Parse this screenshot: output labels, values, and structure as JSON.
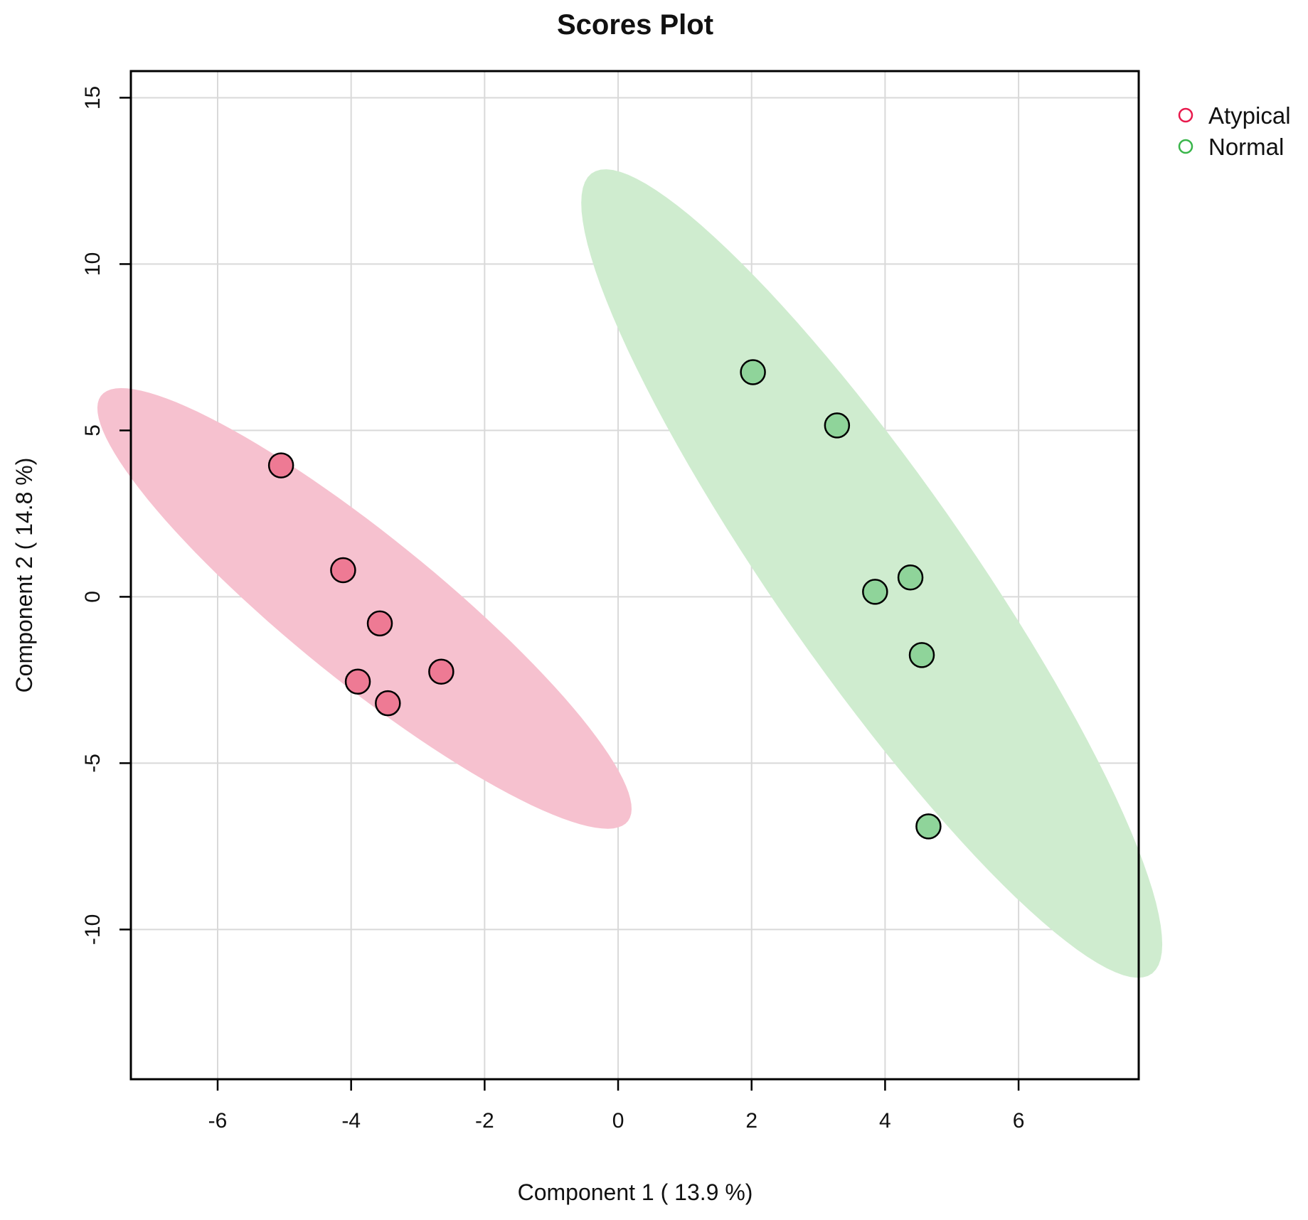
{
  "chart_data": {
    "type": "scatter",
    "title": "Scores Plot",
    "xlabel": "Component 1 ( 13.9 %)",
    "ylabel": "Component 2 ( 14.8 %)",
    "xlim": [
      -7.3,
      7.8
    ],
    "ylim": [
      -14.5,
      15.8
    ],
    "xticks": [
      -6,
      -4,
      -2,
      0,
      2,
      4,
      6
    ],
    "yticks": [
      -10,
      -5,
      0,
      5,
      10,
      15
    ],
    "grid": true,
    "legend_position": "top-right, outside plot",
    "series": [
      {
        "name": "Atypical",
        "color": "#e8194c",
        "point_fill": "#ee7a94",
        "ellipse_fill": "#f6c1cf",
        "points": [
          {
            "x": -5.05,
            "y": 3.95
          },
          {
            "x": -4.12,
            "y": 0.8
          },
          {
            "x": -3.57,
            "y": -0.8
          },
          {
            "x": -3.9,
            "y": -2.55
          },
          {
            "x": -3.45,
            "y": -3.2
          },
          {
            "x": -2.65,
            "y": -2.25
          }
        ],
        "ellipse": {
          "cx": -3.8,
          "cy": -0.35,
          "semi_major": 7.6,
          "semi_minor": 1.45,
          "angle_deg": -60
        }
      },
      {
        "name": "Normal",
        "color": "#39b54a",
        "point_fill": "#8fd49a",
        "ellipse_fill": "#cfeccf",
        "points": [
          {
            "x": 2.02,
            "y": 6.75
          },
          {
            "x": 3.28,
            "y": 5.15
          },
          {
            "x": 3.85,
            "y": 0.15
          },
          {
            "x": 4.38,
            "y": 0.58
          },
          {
            "x": 4.55,
            "y": -1.75
          },
          {
            "x": 4.65,
            "y": -6.9
          }
        ],
        "ellipse": {
          "cx": 3.8,
          "cy": 0.7,
          "semi_major": 12.8,
          "semi_minor": 1.65,
          "angle_deg": -71.5
        }
      }
    ]
  }
}
